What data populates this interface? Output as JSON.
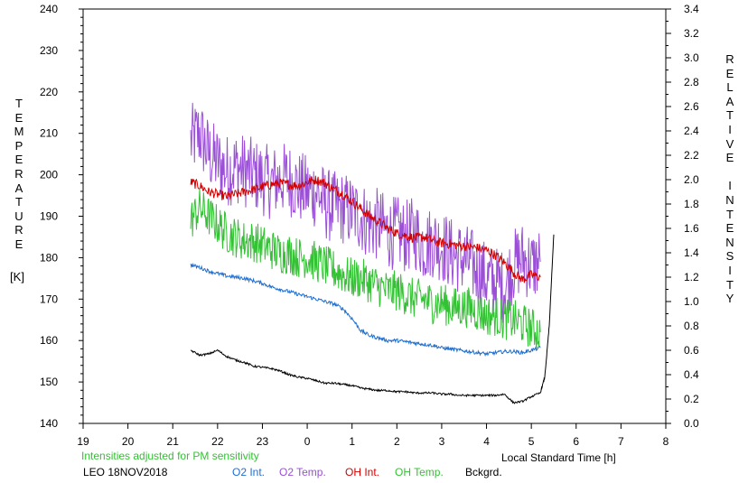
{
  "left_axis_title_letters": [
    "T",
    "E",
    "M",
    "P",
    "E",
    "R",
    "A",
    "T",
    "U",
    "R",
    "E"
  ],
  "left_axis_unit": "[K]",
  "right_axis_title_letters": [
    "R",
    "E",
    "L",
    "A",
    "T",
    "I",
    "V",
    "E",
    "",
    "I",
    "N",
    "T",
    "E",
    "N",
    "S",
    "I",
    "T",
    "Y"
  ],
  "footer": {
    "note": "Intensities adjusted for PM sensitivity",
    "station_date": "LEO 18NOV2018",
    "xlabel": "Local Standard Time [h]"
  },
  "legend": [
    {
      "label": "O2 Int.",
      "color": "#1f6fd0"
    },
    {
      "label": "O2 Temp.",
      "color": "#9a4fd6"
    },
    {
      "label": "OH Int.",
      "color": "#d40000"
    },
    {
      "label": "OH Temp.",
      "color": "#33c233"
    },
    {
      "label": "Bckgrd.",
      "color": "#000000"
    }
  ],
  "chart_data": {
    "type": "line",
    "x_ticks": [
      "19",
      "20",
      "21",
      "22",
      "23",
      "0",
      "1",
      "2",
      "3",
      "4",
      "5",
      "6",
      "7",
      "8"
    ],
    "xlim": [
      19,
      32
    ],
    "y_left": {
      "ticks": [
        140,
        150,
        160,
        170,
        180,
        190,
        200,
        210,
        220,
        230,
        240
      ],
      "lim": [
        140,
        240
      ]
    },
    "y_right": {
      "ticks": [
        "0.0",
        "0.2",
        "0.4",
        "0.6",
        "0.8",
        "1.0",
        "1.2",
        "1.4",
        "1.6",
        "1.8",
        "2.0",
        "2.2",
        "2.4",
        "2.6",
        "2.8",
        "3.0",
        "3.2",
        "3.4"
      ],
      "lim": [
        0,
        3.4
      ]
    },
    "grid": false,
    "series": [
      {
        "name": "O2 Temp.",
        "axis": "left",
        "color": "#9a4fd6",
        "x": [
          21.4,
          21.6,
          21.8,
          22.0,
          22.2,
          22.4,
          22.6,
          22.8,
          23.0,
          23.2,
          23.4,
          23.6,
          23.8,
          24.0,
          24.2,
          24.4,
          24.6,
          24.8,
          25.0,
          25.2,
          25.4,
          25.6,
          25.8,
          26.0,
          26.2,
          26.4,
          26.6,
          26.8,
          27.0,
          27.2,
          27.4,
          27.6,
          27.8,
          28.0,
          28.2,
          28.4,
          28.6,
          28.8,
          29.0,
          29.2
        ],
        "y": [
          208,
          210,
          205,
          203,
          201,
          202,
          201,
          200,
          199,
          198,
          199,
          199,
          197,
          196,
          196,
          193,
          192,
          192,
          191,
          190,
          188,
          188,
          186,
          186,
          185,
          186,
          183,
          184,
          183,
          181,
          180,
          179,
          177,
          175,
          174,
          173,
          178,
          180,
          178,
          179
        ],
        "noise": 9
      },
      {
        "name": "OH Int.",
        "axis": "right",
        "color": "#d40000",
        "x": [
          21.4,
          21.6,
          21.8,
          22.0,
          22.2,
          22.4,
          22.6,
          22.8,
          23.0,
          23.2,
          23.4,
          23.6,
          23.8,
          24.0,
          24.2,
          24.4,
          24.6,
          24.8,
          25.0,
          25.2,
          25.4,
          25.6,
          25.8,
          26.0,
          26.2,
          26.4,
          26.6,
          26.8,
          27.0,
          27.2,
          27.4,
          27.6,
          27.8,
          28.0,
          28.2,
          28.4,
          28.6,
          28.8,
          29.0,
          29.2
        ],
        "y": [
          1.98,
          1.95,
          1.9,
          1.88,
          1.86,
          1.88,
          1.9,
          1.92,
          1.94,
          1.96,
          1.97,
          1.96,
          1.95,
          1.98,
          2.0,
          1.97,
          1.92,
          1.88,
          1.82,
          1.76,
          1.7,
          1.65,
          1.6,
          1.56,
          1.54,
          1.52,
          1.53,
          1.5,
          1.48,
          1.47,
          1.46,
          1.45,
          1.44,
          1.42,
          1.38,
          1.32,
          1.24,
          1.18,
          1.22,
          1.2
        ],
        "noise": 0.04
      },
      {
        "name": "OH Temp.",
        "axis": "left",
        "color": "#33c233",
        "x": [
          21.4,
          21.6,
          21.8,
          22.0,
          22.2,
          22.4,
          22.6,
          22.8,
          23.0,
          23.2,
          23.4,
          23.6,
          23.8,
          24.0,
          24.2,
          24.4,
          24.6,
          24.8,
          25.0,
          25.2,
          25.4,
          25.6,
          25.8,
          26.0,
          26.2,
          26.4,
          26.6,
          26.8,
          27.0,
          27.2,
          27.4,
          27.6,
          27.8,
          28.0,
          28.2,
          28.4,
          28.6,
          28.8,
          29.0,
          29.2
        ],
        "y": [
          189,
          192,
          190,
          188,
          186,
          185,
          184,
          184,
          183,
          182,
          181,
          181,
          180,
          180,
          179,
          178,
          177,
          176,
          175,
          175,
          174,
          173,
          172,
          172,
          171,
          170,
          170,
          169,
          169,
          168,
          168,
          168,
          167,
          166,
          166,
          165,
          165,
          164,
          163,
          162
        ],
        "noise": 5
      },
      {
        "name": "O2 Int.",
        "axis": "right",
        "color": "#1f6fd0",
        "x": [
          21.4,
          21.6,
          21.8,
          22.0,
          22.2,
          22.4,
          22.6,
          22.8,
          23.0,
          23.2,
          23.4,
          23.6,
          23.8,
          24.0,
          24.2,
          24.4,
          24.6,
          24.8,
          25.0,
          25.2,
          25.4,
          25.6,
          25.8,
          26.0,
          26.2,
          26.4,
          26.6,
          26.8,
          27.0,
          27.2,
          27.4,
          27.6,
          27.8,
          28.0,
          28.2,
          28.4,
          28.6,
          28.8,
          29.0,
          29.2
        ],
        "y": [
          1.3,
          1.28,
          1.25,
          1.23,
          1.21,
          1.2,
          1.19,
          1.17,
          1.15,
          1.12,
          1.1,
          1.08,
          1.06,
          1.04,
          1.02,
          1.0,
          0.98,
          0.94,
          0.86,
          0.76,
          0.72,
          0.7,
          0.68,
          0.68,
          0.67,
          0.66,
          0.65,
          0.64,
          0.62,
          0.61,
          0.6,
          0.59,
          0.58,
          0.57,
          0.58,
          0.59,
          0.59,
          0.58,
          0.6,
          0.62
        ],
        "noise": 0.015
      },
      {
        "name": "Bckgrd.",
        "axis": "right",
        "color": "#000000",
        "x": [
          21.4,
          21.6,
          21.8,
          22.0,
          22.2,
          22.4,
          22.6,
          22.8,
          23.0,
          23.2,
          23.4,
          23.6,
          23.8,
          24.0,
          24.2,
          24.4,
          24.6,
          24.8,
          25.0,
          25.2,
          25.4,
          25.6,
          25.8,
          26.0,
          26.2,
          26.4,
          26.6,
          26.8,
          27.0,
          27.2,
          27.4,
          27.6,
          27.8,
          28.0,
          28.2,
          28.4,
          28.6,
          28.8,
          29.0,
          29.2,
          29.3,
          29.4,
          29.5
        ],
        "y": [
          0.6,
          0.56,
          0.57,
          0.6,
          0.55,
          0.52,
          0.5,
          0.47,
          0.46,
          0.45,
          0.43,
          0.4,
          0.38,
          0.37,
          0.35,
          0.33,
          0.33,
          0.32,
          0.31,
          0.29,
          0.28,
          0.27,
          0.27,
          0.26,
          0.26,
          0.25,
          0.25,
          0.25,
          0.24,
          0.24,
          0.23,
          0.23,
          0.23,
          0.23,
          0.23,
          0.24,
          0.17,
          0.18,
          0.22,
          0.25,
          0.38,
          0.8,
          1.55
        ],
        "noise": 0.008
      }
    ]
  }
}
